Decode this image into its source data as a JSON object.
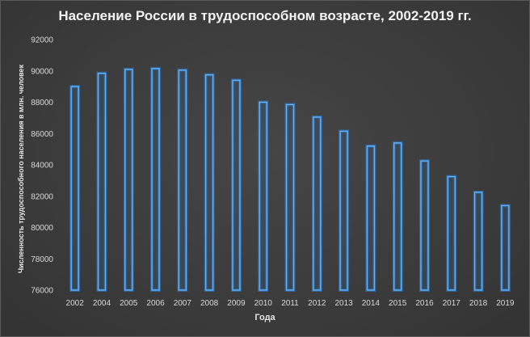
{
  "chart_data": {
    "type": "bar",
    "title": "Население России в трудоспособном возрасте, 2002-2019 гг.",
    "xlabel": "Года",
    "ylabel": "Численность трудоспособного населения в млн. человек",
    "categories": [
      "2002",
      "2004",
      "2005",
      "2006",
      "2007",
      "2008",
      "2009",
      "2010",
      "2011",
      "2012",
      "2013",
      "2014",
      "2015",
      "2016",
      "2017",
      "2018",
      "2019"
    ],
    "values": [
      89000,
      89850,
      90100,
      90150,
      90050,
      89750,
      89400,
      88000,
      87850,
      87050,
      86150,
      85200,
      85400,
      84250,
      83250,
      82250,
      81400
    ],
    "ylim": [
      76000,
      92000
    ],
    "yticks": [
      "76000",
      "78000",
      "80000",
      "82000",
      "84000",
      "86000",
      "88000",
      "90000",
      "92000"
    ],
    "grid": false,
    "legend": "none",
    "colors": {
      "bar_stroke": "#5fb4ff",
      "bar_fill": "#3c5a78",
      "background": "#3a3a3a",
      "text": "#f2f2f2"
    }
  }
}
